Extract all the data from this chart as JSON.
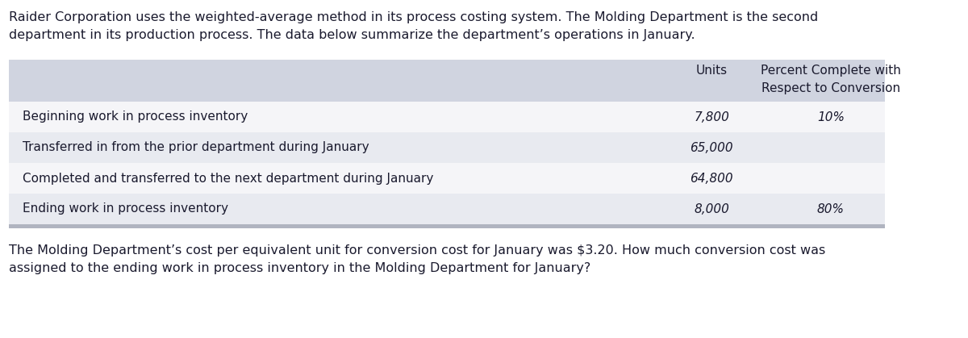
{
  "intro_text_line1": "Raider Corporation uses the weighted-average method in its process costing system. The Molding Department is the second",
  "intro_text_line2": "department in its production process. The data below summarize the department’s operations in January.",
  "header_col1": "",
  "header_col2": "Units",
  "header_col3_line1": "Percent Complete with",
  "header_col3_line2": "Respect to Conversion",
  "rows": [
    {
      "label": "Beginning work in process inventory",
      "units": "7,800",
      "pct": "10%"
    },
    {
      "label": "Transferred in from the prior department during January",
      "units": "65,000",
      "pct": ""
    },
    {
      "label": "Completed and transferred to the next department during January",
      "units": "64,800",
      "pct": ""
    },
    {
      "label": "Ending work in process inventory",
      "units": "8,000",
      "pct": "80%"
    }
  ],
  "footer_text_line1": "The Molding Department’s cost per equivalent unit for conversion cost for January was $3.20. How much conversion cost was",
  "footer_text_line2": "assigned to the ending work in process inventory in the Molding Department for January?",
  "header_bg_color": "#d0d4e0",
  "row_bg_even": "#e8eaf0",
  "row_bg_odd": "#f5f5f8",
  "footer_bar_color": "#b0b4c0",
  "text_color": "#1a1a2e",
  "font_size_intro": 11.5,
  "font_size_header": 11.0,
  "font_size_row": 11.0,
  "font_size_footer": 11.5
}
